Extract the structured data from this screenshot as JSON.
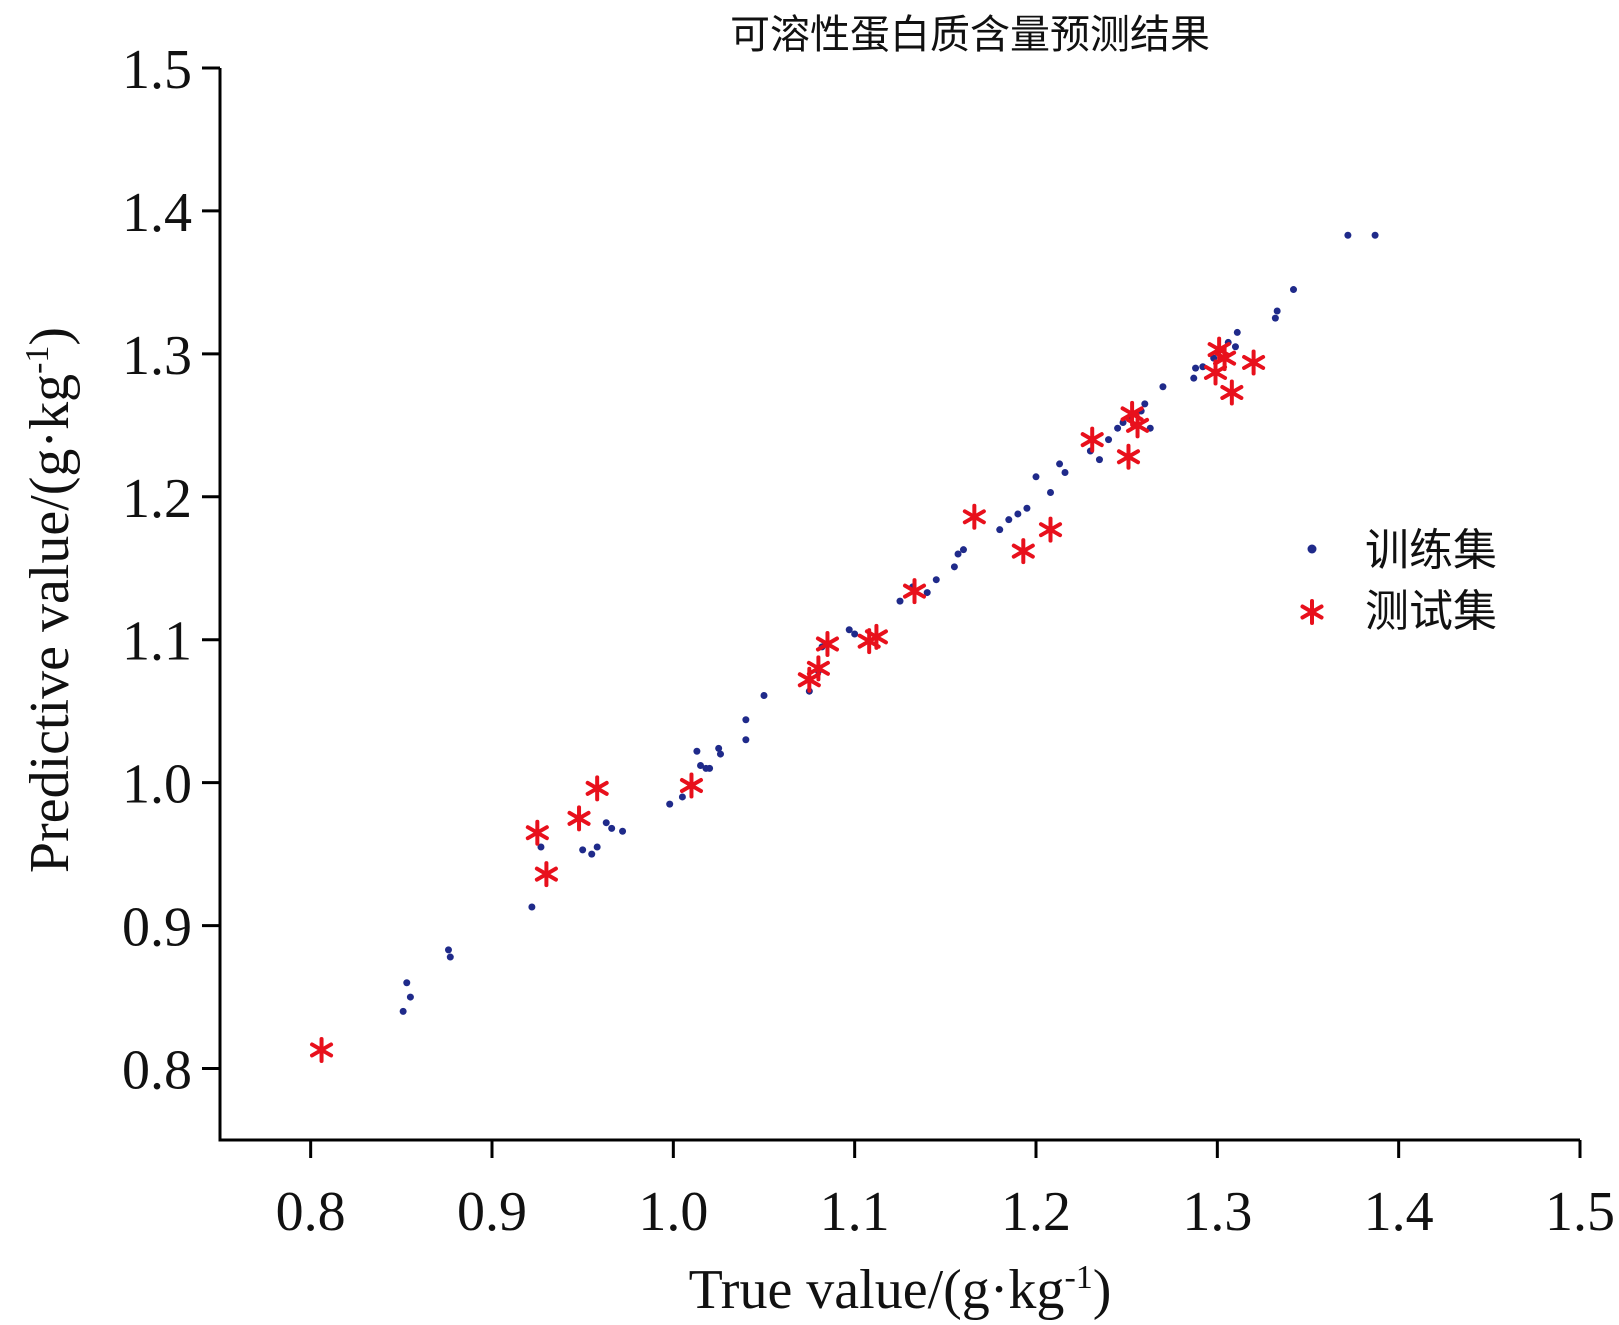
{
  "chart_data": {
    "type": "scatter",
    "title": "可溶性蛋白质含量预测结果",
    "xlabel": {
      "text": "True value/(g·kg",
      "sup": "-1",
      "close": ")"
    },
    "ylabel": {
      "text": "Predictive value/(g·kg",
      "sup": "-1",
      "close": ")"
    },
    "xlim": [
      0.75,
      1.5
    ],
    "ylim": [
      0.75,
      1.5
    ],
    "xticks": [
      "0.8",
      "0.9",
      "1.0",
      "1.1",
      "1.2",
      "1.3",
      "1.4",
      "1.5"
    ],
    "yticks": [
      "0.8",
      "0.9",
      "1.0",
      "1.1",
      "1.2",
      "1.3",
      "1.4",
      "1.5"
    ],
    "grid": false,
    "legend_position": "right",
    "series": [
      {
        "name": "训练集",
        "marker": "dot",
        "color": "#1f2a8a",
        "points": [
          [
            0.851,
            0.84
          ],
          [
            0.853,
            0.86
          ],
          [
            0.855,
            0.85
          ],
          [
            0.876,
            0.883
          ],
          [
            0.877,
            0.878
          ],
          [
            0.922,
            0.913
          ],
          [
            0.927,
            0.955
          ],
          [
            0.95,
            0.953
          ],
          [
            0.955,
            0.95
          ],
          [
            0.958,
            0.955
          ],
          [
            0.963,
            0.972
          ],
          [
            0.966,
            0.968
          ],
          [
            0.972,
            0.966
          ],
          [
            0.998,
            0.985
          ],
          [
            1.005,
            0.99
          ],
          [
            1.013,
            1.022
          ],
          [
            1.015,
            1.012
          ],
          [
            1.018,
            1.01
          ],
          [
            1.02,
            1.01
          ],
          [
            1.025,
            1.024
          ],
          [
            1.026,
            1.02
          ],
          [
            1.04,
            1.03
          ],
          [
            1.04,
            1.044
          ],
          [
            1.05,
            1.061
          ],
          [
            1.075,
            1.064
          ],
          [
            1.08,
            1.078
          ],
          [
            1.082,
            1.095
          ],
          [
            1.097,
            1.107
          ],
          [
            1.1,
            1.104
          ],
          [
            1.125,
            1.127
          ],
          [
            1.132,
            1.137
          ],
          [
            1.14,
            1.133
          ],
          [
            1.145,
            1.142
          ],
          [
            1.155,
            1.151
          ],
          [
            1.157,
            1.16
          ],
          [
            1.16,
            1.163
          ],
          [
            1.18,
            1.177
          ],
          [
            1.185,
            1.184
          ],
          [
            1.19,
            1.188
          ],
          [
            1.195,
            1.192
          ],
          [
            1.2,
            1.214
          ],
          [
            1.208,
            1.203
          ],
          [
            1.213,
            1.223
          ],
          [
            1.216,
            1.217
          ],
          [
            1.23,
            1.232
          ],
          [
            1.235,
            1.226
          ],
          [
            1.24,
            1.24
          ],
          [
            1.245,
            1.248
          ],
          [
            1.248,
            1.252
          ],
          [
            1.252,
            1.255
          ],
          [
            1.258,
            1.26
          ],
          [
            1.26,
            1.265
          ],
          [
            1.263,
            1.248
          ],
          [
            1.27,
            1.277
          ],
          [
            1.287,
            1.283
          ],
          [
            1.288,
            1.29
          ],
          [
            1.292,
            1.291
          ],
          [
            1.298,
            1.297
          ],
          [
            1.303,
            1.303
          ],
          [
            1.306,
            1.308
          ],
          [
            1.31,
            1.305
          ],
          [
            1.311,
            1.315
          ],
          [
            1.332,
            1.325
          ],
          [
            1.333,
            1.33
          ],
          [
            1.342,
            1.345
          ],
          [
            1.372,
            1.383
          ],
          [
            1.387,
            1.383
          ]
        ]
      },
      {
        "name": "测试集",
        "marker": "asterisk",
        "color": "#e8101c",
        "points": [
          [
            0.806,
            0.813
          ],
          [
            0.925,
            0.965
          ],
          [
            0.93,
            0.936
          ],
          [
            0.948,
            0.975
          ],
          [
            0.958,
            0.996
          ],
          [
            1.01,
            0.998
          ],
          [
            1.075,
            1.072
          ],
          [
            1.08,
            1.08
          ],
          [
            1.085,
            1.097
          ],
          [
            1.108,
            1.099
          ],
          [
            1.112,
            1.102
          ],
          [
            1.133,
            1.134
          ],
          [
            1.166,
            1.186
          ],
          [
            1.193,
            1.162
          ],
          [
            1.208,
            1.177
          ],
          [
            1.231,
            1.24
          ],
          [
            1.251,
            1.228
          ],
          [
            1.253,
            1.258
          ],
          [
            1.256,
            1.25
          ],
          [
            1.299,
            1.287
          ],
          [
            1.301,
            1.303
          ],
          [
            1.304,
            1.297
          ],
          [
            1.308,
            1.273
          ],
          [
            1.32,
            1.294
          ]
        ]
      }
    ]
  },
  "legend": {
    "items": [
      {
        "label": "训练集",
        "marker": "dot"
      },
      {
        "label": "测试集",
        "marker": "asterisk"
      }
    ]
  }
}
